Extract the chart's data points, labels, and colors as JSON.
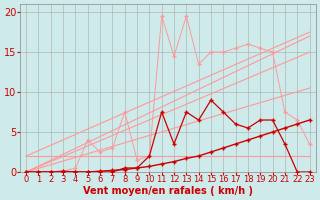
{
  "background_color": "#ceeaea",
  "grid_color": "#aaaaaa",
  "xlabel": "Vent moyen/en rafales ( km/h )",
  "xlabel_color": "#cc0000",
  "xlabel_fontsize": 7,
  "tick_color": "#cc0000",
  "tick_fontsize": 6,
  "xlim": [
    -0.5,
    23.5
  ],
  "ylim": [
    0,
    21
  ],
  "yticks": [
    0,
    5,
    10,
    15,
    20
  ],
  "xticks": [
    0,
    1,
    2,
    3,
    4,
    5,
    6,
    7,
    8,
    9,
    10,
    11,
    12,
    13,
    14,
    15,
    16,
    17,
    18,
    19,
    20,
    21,
    22,
    23
  ],
  "trend1_x": [
    0,
    23
  ],
  "trend1_y": [
    0.0,
    10.5
  ],
  "trend2_x": [
    0,
    23
  ],
  "trend2_y": [
    0.0,
    17.0
  ],
  "trend3_x": [
    0,
    23
  ],
  "trend3_y": [
    2.0,
    17.5
  ],
  "trend4_x": [
    0,
    23
  ],
  "trend4_y": [
    0.0,
    15.0
  ],
  "trend5_x": [
    0,
    23
  ],
  "trend5_y": [
    2.0,
    2.0
  ],
  "light_jagged_x": [
    0,
    1,
    2,
    3,
    4,
    5,
    6,
    7,
    8,
    9,
    10,
    11,
    12,
    13,
    14,
    15,
    16,
    17,
    18,
    19,
    20,
    21,
    22,
    23
  ],
  "light_jagged_y": [
    0.0,
    0.0,
    0.0,
    0.1,
    0.5,
    4.0,
    2.5,
    3.0,
    7.5,
    1.5,
    2.0,
    19.5,
    14.5,
    19.5,
    13.5,
    15.0,
    15.0,
    15.5,
    16.0,
    15.5,
    15.0,
    7.5,
    6.5,
    3.5
  ],
  "dark_jagged_x": [
    0,
    1,
    2,
    3,
    4,
    5,
    6,
    7,
    8,
    9,
    10,
    11,
    12,
    13,
    14,
    15,
    16,
    17,
    18,
    19,
    20,
    21,
    22,
    23
  ],
  "dark_jagged_y": [
    0.0,
    0.0,
    0.0,
    0.1,
    0.0,
    0.0,
    0.0,
    0.0,
    0.5,
    0.5,
    2.0,
    7.5,
    3.5,
    7.5,
    6.5,
    9.0,
    7.5,
    6.0,
    5.5,
    6.5,
    6.5,
    3.5,
    0.0,
    0.0
  ],
  "flat_dark_x": [
    0,
    1,
    2,
    3,
    4,
    5,
    6,
    7,
    8,
    9,
    10,
    11,
    12,
    13,
    14,
    15,
    16,
    17,
    18,
    19,
    20,
    21,
    22,
    23
  ],
  "flat_dark_y": [
    0.0,
    0.0,
    0.0,
    0.0,
    0.0,
    0.0,
    0.1,
    0.2,
    0.3,
    0.5,
    0.7,
    1.0,
    1.3,
    1.7,
    2.0,
    2.5,
    3.0,
    3.5,
    4.0,
    4.5,
    5.0,
    5.5,
    6.0,
    6.5
  ],
  "line_light": "#ff9999",
  "line_dark": "#cc0000",
  "marker_size": 2
}
